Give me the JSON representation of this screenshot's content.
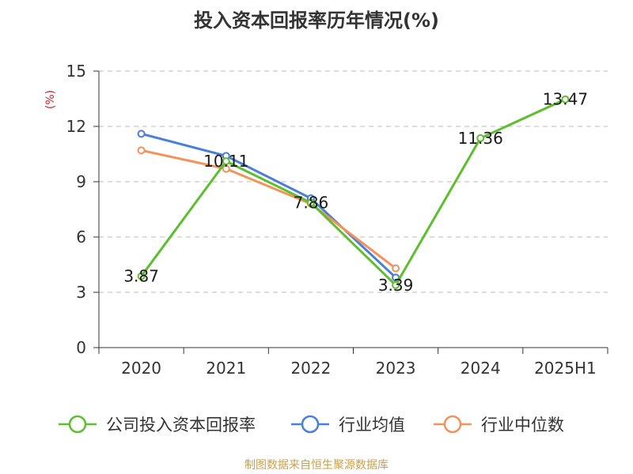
{
  "chart_data": {
    "type": "line",
    "title": "投入资本回报率历年情况(%)",
    "ylabel": "(%)",
    "categories": [
      "2020",
      "2021",
      "2022",
      "2023",
      "2024",
      "2025H1"
    ],
    "ylim": [
      0,
      15
    ],
    "yticks": [
      0,
      3,
      6,
      9,
      12,
      15
    ],
    "grid": true,
    "legend_position": "bottom",
    "series": [
      {
        "name": "公司投入资本回报率",
        "color": "#5dbe2e",
        "values": [
          3.87,
          10.11,
          7.86,
          3.39,
          11.36,
          13.47
        ],
        "labels": [
          "3.87",
          "10.11",
          "7.86",
          "3.39",
          "11.36",
          "13.47"
        ]
      },
      {
        "name": "行业均值",
        "color": "#4a7fd8",
        "values": [
          11.6,
          10.4,
          8.1,
          3.8,
          null,
          null
        ]
      },
      {
        "name": "行业中位数",
        "color": "#f5915a",
        "values": [
          10.7,
          9.7,
          7.8,
          4.3,
          null,
          null
        ]
      }
    ]
  },
  "source": "制图数据来自恒生聚源数据库"
}
